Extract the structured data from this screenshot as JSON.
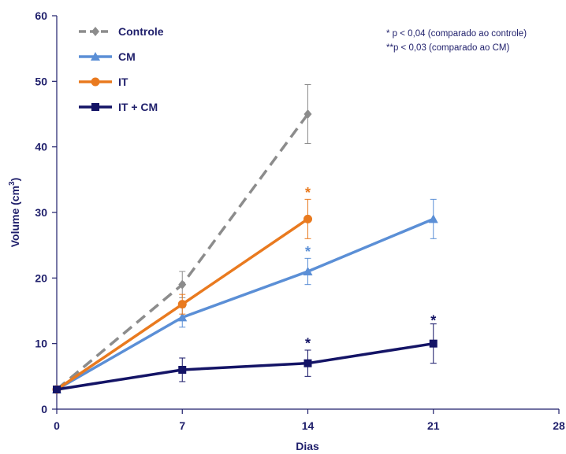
{
  "chart_data": {
    "type": "line",
    "xlabel": "Dias",
    "ylabel": "Volume (cm",
    "ylabel_sup": "3",
    "ylabel_close": ")",
    "xlim": [
      0,
      28
    ],
    "ylim": [
      0,
      60
    ],
    "xticks": [
      0,
      7,
      14,
      21,
      28
    ],
    "yticks": [
      0,
      10,
      20,
      30,
      40,
      50,
      60
    ],
    "grid": false,
    "legend_position": "top-left",
    "series": [
      {
        "name": "Controle",
        "color": "#8c8c8c",
        "dashed": true,
        "marker": "diamond",
        "x": [
          0,
          7,
          14
        ],
        "y": [
          3,
          19,
          45
        ],
        "err": [
          0.5,
          2,
          4.5
        ],
        "stars": [],
        "star_color": "#8c8c8c"
      },
      {
        "name": "CM",
        "color": "#5b8fd6",
        "dashed": false,
        "marker": "triangle",
        "x": [
          0,
          7,
          14,
          21
        ],
        "y": [
          3,
          14,
          21,
          29
        ],
        "err": [
          0.5,
          1.5,
          2,
          3
        ],
        "stars": [
          {
            "x": 14,
            "y": 24.5,
            "text": "*"
          }
        ],
        "star_color": "#5b8fd6"
      },
      {
        "name": "IT",
        "color": "#e97a1f",
        "dashed": false,
        "marker": "circle",
        "x": [
          0,
          7,
          14
        ],
        "y": [
          3,
          16,
          29
        ],
        "err": [
          0.5,
          1.5,
          3
        ],
        "stars": [
          {
            "x": 14,
            "y": 33.5,
            "text": "*"
          }
        ],
        "star_color": "#e97a1f"
      },
      {
        "name": "IT + CM",
        "color": "#141466",
        "dashed": false,
        "marker": "square",
        "x": [
          0,
          7,
          14,
          21
        ],
        "y": [
          3,
          6,
          7,
          10
        ],
        "err": [
          0.3,
          1.8,
          2,
          3
        ],
        "stars": [
          {
            "x": 14,
            "y": 10.5,
            "text": "*"
          },
          {
            "x": 21,
            "y": 14,
            "text": "*"
          }
        ],
        "star_color": "#141466"
      }
    ],
    "annotations": [
      "* p < 0,04 (comparado ao controle)",
      "**p < 0,03 (comparado ao CM)"
    ]
  }
}
